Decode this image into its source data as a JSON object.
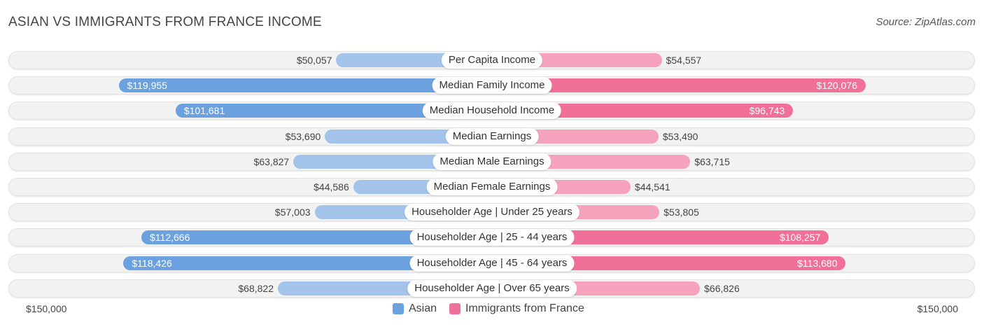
{
  "chart_data": {
    "type": "bar",
    "orientation": "horizontal-diverging",
    "title": "ASIAN VS IMMIGRANTS FROM FRANCE INCOME",
    "source": "Source: ZipAtlas.com",
    "categories": [
      "Per Capita Income",
      "Median Family Income",
      "Median Household Income",
      "Median Earnings",
      "Median Male Earnings",
      "Median Female Earnings",
      "Householder Age | Under 25 years",
      "Householder Age | 25 - 44 years",
      "Householder Age | 45 - 64 years",
      "Householder Age | Over 65 years"
    ],
    "series": [
      {
        "name": "Asian",
        "values": [
          50057,
          119955,
          101681,
          53690,
          63827,
          44586,
          57003,
          112666,
          118426,
          68822
        ],
        "labels": [
          "$50,057",
          "$119,955",
          "$101,681",
          "$53,690",
          "$63,827",
          "$44,586",
          "$57,003",
          "$112,666",
          "$118,426",
          "$68,822"
        ]
      },
      {
        "name": "Immigrants from France",
        "values": [
          54557,
          120076,
          96743,
          53490,
          63715,
          44541,
          53805,
          108257,
          113680,
          66826
        ],
        "labels": [
          "$54,557",
          "$120,076",
          "$96,743",
          "$53,490",
          "$63,715",
          "$44,541",
          "$53,805",
          "$108,257",
          "$113,680",
          "$66,826"
        ]
      }
    ],
    "axis_max": 150000,
    "axis_left_label": "$150,000",
    "axis_right_label": "$150,000",
    "legend_position": "bottom-center"
  },
  "colors": {
    "asian_strong": "#6aa1de",
    "asian_light": "#a3c3ea",
    "france_strong": "#f07098",
    "france_light": "#f5a2bd"
  }
}
